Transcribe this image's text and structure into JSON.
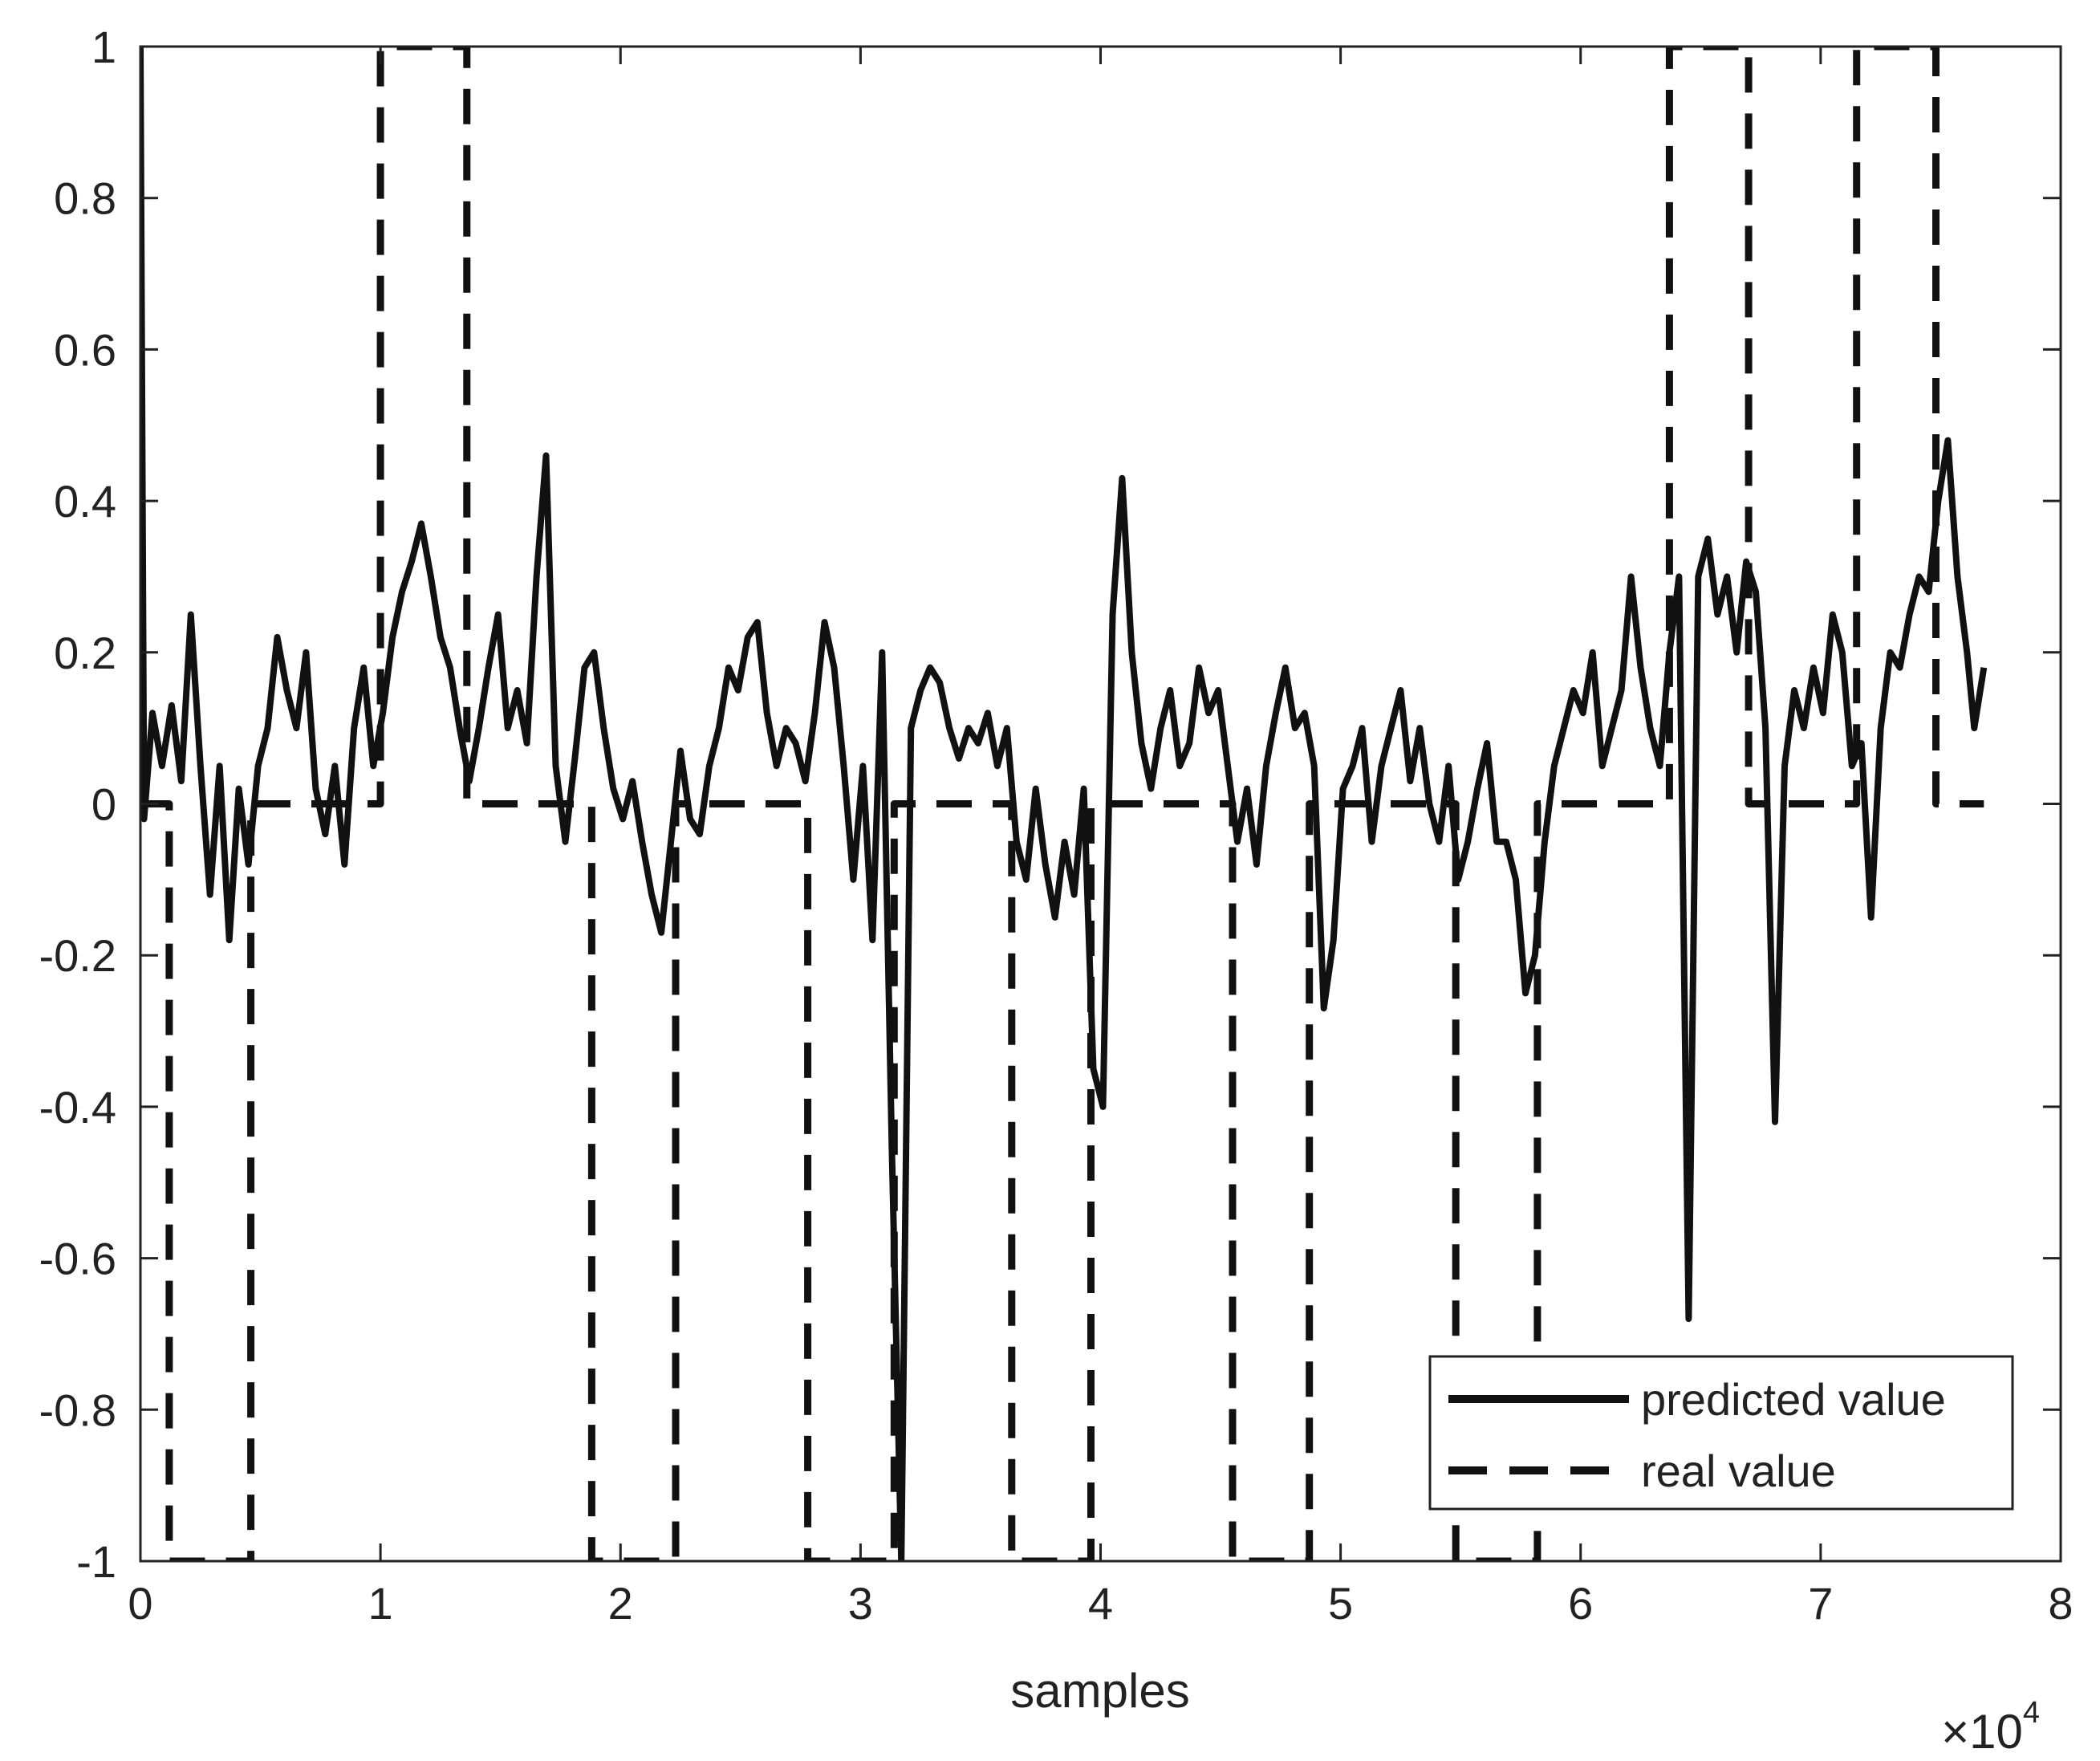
{
  "chart_data": {
    "type": "line",
    "xlabel": "samples",
    "ylabel": "",
    "x_exponent_label": "×10",
    "x_exponent_power": "4",
    "xlim": [
      0,
      80000
    ],
    "ylim": [
      -1,
      1
    ],
    "xticks": [
      0,
      10000,
      20000,
      30000,
      40000,
      50000,
      60000,
      70000,
      80000
    ],
    "xtick_labels": [
      "0",
      "1",
      "2",
      "3",
      "4",
      "5",
      "6",
      "7",
      "8"
    ],
    "yticks": [
      -1,
      -0.8,
      -0.6,
      -0.4,
      -0.2,
      0,
      0.2,
      0.4,
      0.6,
      0.8,
      1
    ],
    "ytick_labels": [
      "-1",
      "-0.8",
      "-0.6",
      "-0.4",
      "-0.2",
      "0",
      "0.2",
      "0.4",
      "0.6",
      "0.8",
      "1"
    ],
    "grid": false,
    "legend_position": "bottom-right",
    "series": [
      {
        "name": "predicted value",
        "style": "solid",
        "color": "#111111",
        "points": [
          [
            0,
            1
          ],
          [
            150,
            -0.02
          ],
          [
            500,
            0.12
          ],
          [
            900,
            0.05
          ],
          [
            1300,
            0.13
          ],
          [
            1700,
            0.03
          ],
          [
            2100,
            0.25
          ],
          [
            2500,
            0.05
          ],
          [
            2900,
            -0.12
          ],
          [
            3300,
            0.05
          ],
          [
            3700,
            -0.18
          ],
          [
            4100,
            0.02
          ],
          [
            4500,
            -0.08
          ],
          [
            4900,
            0.05
          ],
          [
            5300,
            0.1
          ],
          [
            5700,
            0.22
          ],
          [
            6100,
            0.15
          ],
          [
            6500,
            0.1
          ],
          [
            6900,
            0.2
          ],
          [
            7300,
            0.02
          ],
          [
            7700,
            -0.04
          ],
          [
            8100,
            0.05
          ],
          [
            8500,
            -0.08
          ],
          [
            8900,
            0.1
          ],
          [
            9300,
            0.18
          ],
          [
            9700,
            0.05
          ],
          [
            10100,
            0.12
          ],
          [
            10500,
            0.22
          ],
          [
            10900,
            0.28
          ],
          [
            11300,
            0.32
          ],
          [
            11700,
            0.37
          ],
          [
            12100,
            0.3
          ],
          [
            12500,
            0.22
          ],
          [
            12900,
            0.18
          ],
          [
            13300,
            0.1
          ],
          [
            13700,
            0.03
          ],
          [
            14100,
            0.1
          ],
          [
            14500,
            0.18
          ],
          [
            14900,
            0.25
          ],
          [
            15300,
            0.1
          ],
          [
            15700,
            0.15
          ],
          [
            16100,
            0.08
          ],
          [
            16500,
            0.3
          ],
          [
            16900,
            0.46
          ],
          [
            17300,
            0.05
          ],
          [
            17700,
            -0.05
          ],
          [
            18100,
            0.06
          ],
          [
            18500,
            0.18
          ],
          [
            18900,
            0.2
          ],
          [
            19300,
            0.1
          ],
          [
            19700,
            0.02
          ],
          [
            20100,
            -0.02
          ],
          [
            20500,
            0.03
          ],
          [
            20900,
            -0.05
          ],
          [
            21300,
            -0.12
          ],
          [
            21700,
            -0.17
          ],
          [
            22100,
            -0.05
          ],
          [
            22500,
            0.07
          ],
          [
            22900,
            -0.02
          ],
          [
            23300,
            -0.04
          ],
          [
            23700,
            0.05
          ],
          [
            24100,
            0.1
          ],
          [
            24500,
            0.18
          ],
          [
            24900,
            0.15
          ],
          [
            25300,
            0.22
          ],
          [
            25700,
            0.24
          ],
          [
            26100,
            0.12
          ],
          [
            26500,
            0.05
          ],
          [
            26900,
            0.1
          ],
          [
            27300,
            0.08
          ],
          [
            27700,
            0.03
          ],
          [
            28100,
            0.12
          ],
          [
            28500,
            0.24
          ],
          [
            28900,
            0.18
          ],
          [
            29300,
            0.05
          ],
          [
            29700,
            -0.1
          ],
          [
            30100,
            0.05
          ],
          [
            30500,
            -0.18
          ],
          [
            30900,
            0.2
          ],
          [
            31300,
            -0.45
          ],
          [
            31700,
            -1.0
          ],
          [
            32100,
            0.1
          ],
          [
            32500,
            0.15
          ],
          [
            32900,
            0.18
          ],
          [
            33300,
            0.16
          ],
          [
            33700,
            0.1
          ],
          [
            34100,
            0.06
          ],
          [
            34500,
            0.1
          ],
          [
            34900,
            0.08
          ],
          [
            35300,
            0.12
          ],
          [
            35700,
            0.05
          ],
          [
            36100,
            0.1
          ],
          [
            36500,
            -0.05
          ],
          [
            36900,
            -0.1
          ],
          [
            37300,
            0.02
          ],
          [
            37700,
            -0.08
          ],
          [
            38100,
            -0.15
          ],
          [
            38500,
            -0.05
          ],
          [
            38900,
            -0.12
          ],
          [
            39300,
            0.02
          ],
          [
            39700,
            -0.35
          ],
          [
            40100,
            -0.4
          ],
          [
            40500,
            0.25
          ],
          [
            40900,
            0.43
          ],
          [
            41300,
            0.2
          ],
          [
            41700,
            0.08
          ],
          [
            42100,
            0.02
          ],
          [
            42500,
            0.1
          ],
          [
            42900,
            0.15
          ],
          [
            43300,
            0.05
          ],
          [
            43700,
            0.08
          ],
          [
            44100,
            0.18
          ],
          [
            44500,
            0.12
          ],
          [
            44900,
            0.15
          ],
          [
            45300,
            0.05
          ],
          [
            45700,
            -0.05
          ],
          [
            46100,
            0.02
          ],
          [
            46500,
            -0.08
          ],
          [
            46900,
            0.05
          ],
          [
            47300,
            0.12
          ],
          [
            47700,
            0.18
          ],
          [
            48100,
            0.1
          ],
          [
            48500,
            0.12
          ],
          [
            48900,
            0.05
          ],
          [
            49300,
            -0.27
          ],
          [
            49700,
            -0.18
          ],
          [
            50100,
            0.02
          ],
          [
            50500,
            0.05
          ],
          [
            50900,
            0.1
          ],
          [
            51300,
            -0.05
          ],
          [
            51700,
            0.05
          ],
          [
            52100,
            0.1
          ],
          [
            52500,
            0.15
          ],
          [
            52900,
            0.03
          ],
          [
            53300,
            0.1
          ],
          [
            53700,
            0.0
          ],
          [
            54100,
            -0.05
          ],
          [
            54500,
            0.05
          ],
          [
            54900,
            -0.1
          ],
          [
            55300,
            -0.05
          ],
          [
            55700,
            0.02
          ],
          [
            56100,
            0.08
          ],
          [
            56500,
            -0.05
          ],
          [
            56900,
            -0.05
          ],
          [
            57300,
            -0.1
          ],
          [
            57700,
            -0.25
          ],
          [
            58100,
            -0.2
          ],
          [
            58500,
            -0.05
          ],
          [
            58900,
            0.05
          ],
          [
            59300,
            0.1
          ],
          [
            59700,
            0.15
          ],
          [
            60100,
            0.12
          ],
          [
            60500,
            0.2
          ],
          [
            60900,
            0.05
          ],
          [
            61300,
            0.1
          ],
          [
            61700,
            0.15
          ],
          [
            62100,
            0.3
          ],
          [
            62500,
            0.18
          ],
          [
            62900,
            0.1
          ],
          [
            63300,
            0.05
          ],
          [
            63700,
            0.2
          ],
          [
            64100,
            0.3
          ],
          [
            64500,
            -0.68
          ],
          [
            64900,
            0.3
          ],
          [
            65300,
            0.35
          ],
          [
            65700,
            0.25
          ],
          [
            66100,
            0.3
          ],
          [
            66500,
            0.2
          ],
          [
            66900,
            0.32
          ],
          [
            67300,
            0.28
          ],
          [
            67700,
            0.1
          ],
          [
            68100,
            -0.42
          ],
          [
            68500,
            0.05
          ],
          [
            68900,
            0.15
          ],
          [
            69300,
            0.1
          ],
          [
            69700,
            0.18
          ],
          [
            70100,
            0.12
          ],
          [
            70500,
            0.25
          ],
          [
            70900,
            0.2
          ],
          [
            71300,
            0.05
          ],
          [
            71700,
            0.08
          ],
          [
            72100,
            -0.15
          ],
          [
            72500,
            0.1
          ],
          [
            72900,
            0.2
          ],
          [
            73300,
            0.18
          ],
          [
            73700,
            0.25
          ],
          [
            74100,
            0.3
          ],
          [
            74500,
            0.28
          ],
          [
            74900,
            0.4
          ],
          [
            75300,
            0.48
          ],
          [
            75700,
            0.3
          ],
          [
            76100,
            0.2
          ],
          [
            76400,
            0.1
          ],
          [
            76800,
            0.18
          ]
        ]
      },
      {
        "name": "real value",
        "style": "dashed",
        "color": "#111111",
        "points": [
          [
            0,
            0
          ],
          [
            1200,
            0
          ],
          [
            1200,
            -1
          ],
          [
            4600,
            -1
          ],
          [
            4600,
            0
          ],
          [
            10000,
            0
          ],
          [
            10000,
            1
          ],
          [
            13600,
            1
          ],
          [
            13600,
            0
          ],
          [
            18800,
            0
          ],
          [
            18800,
            -1
          ],
          [
            22300,
            -1
          ],
          [
            22300,
            0
          ],
          [
            27800,
            0
          ],
          [
            27800,
            -1
          ],
          [
            31400,
            -1
          ],
          [
            31400,
            0
          ],
          [
            36300,
            0
          ],
          [
            36300,
            -1
          ],
          [
            39600,
            -1
          ],
          [
            39600,
            0
          ],
          [
            45500,
            0
          ],
          [
            45500,
            -1
          ],
          [
            48700,
            -1
          ],
          [
            48700,
            0
          ],
          [
            54800,
            0
          ],
          [
            54800,
            -1
          ],
          [
            58200,
            -1
          ],
          [
            58200,
            0
          ],
          [
            63700,
            0
          ],
          [
            63700,
            1
          ],
          [
            67000,
            1
          ],
          [
            67000,
            0
          ],
          [
            71500,
            0
          ],
          [
            71500,
            1
          ],
          [
            74800,
            1
          ],
          [
            74800,
            0
          ],
          [
            76800,
            0
          ]
        ]
      }
    ]
  }
}
